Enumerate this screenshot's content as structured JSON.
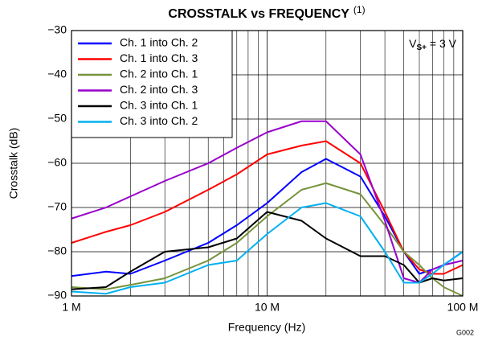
{
  "chart_data": {
    "type": "line",
    "title": "CROSSTALK vs FREQUENCY",
    "title_note": "(1)",
    "annotation": {
      "main": "V",
      "sub": "S+",
      "rest": " = 3 V"
    },
    "figure_id": "G002",
    "xlabel": "Frequency (Hz)",
    "ylabel": "Crosstalk (dB)",
    "xscale": "log",
    "xlim": [
      1000000,
      100000000
    ],
    "ylim": [
      -90,
      -30
    ],
    "xticks": [
      {
        "value": 1000000,
        "label": "1 M"
      },
      {
        "value": 10000000,
        "label": "10 M"
      },
      {
        "value": 100000000,
        "label": "100 M"
      }
    ],
    "xminorticks": [
      2000000,
      3000000,
      4000000,
      5000000,
      6000000,
      7000000,
      8000000,
      9000000,
      20000000,
      30000000,
      40000000,
      50000000,
      60000000,
      70000000,
      80000000,
      90000000
    ],
    "yticks": [
      {
        "value": -30,
        "label": "−30"
      },
      {
        "value": -40,
        "label": "−40"
      },
      {
        "value": -50,
        "label": "−50"
      },
      {
        "value": -60,
        "label": "−60"
      },
      {
        "value": -70,
        "label": "−70"
      },
      {
        "value": -80,
        "label": "−80"
      },
      {
        "value": -90,
        "label": "−90"
      }
    ],
    "grid": true,
    "legend": "upper left",
    "x": [
      1000000,
      1500000,
      2000000,
      3000000,
      5000000,
      7000000,
      10000000,
      15000000,
      20000000,
      30000000,
      40000000,
      50000000,
      60000000,
      70000000,
      80000000,
      100000000
    ],
    "series": [
      {
        "name": "Ch. 1 into Ch. 2",
        "color": "#0000ff",
        "values": [
          -85.5,
          -84.5,
          -85,
          -82,
          -78,
          -74,
          -69,
          -62,
          -59,
          -63,
          -72,
          -80,
          -85,
          -84,
          -83,
          -80
        ]
      },
      {
        "name": "Ch. 1 into Ch. 3",
        "color": "#ff0000",
        "values": [
          -78,
          -75.5,
          -74,
          -71,
          -66,
          -62.5,
          -58,
          -56,
          -55,
          -60,
          -71,
          -80,
          -84,
          -85,
          -85,
          -83
        ]
      },
      {
        "name": "Ch. 2 into Ch. 1",
        "color": "#77933c",
        "values": [
          -88,
          -88.5,
          -87.5,
          -86,
          -82,
          -78,
          -72,
          -66,
          -64.5,
          -67,
          -74,
          -80,
          -83,
          -86,
          -88,
          -90
        ]
      },
      {
        "name": "Ch. 2 into Ch. 3",
        "color": "#9900cc",
        "values": [
          -72.5,
          -70,
          -67.5,
          -64,
          -60,
          -56.5,
          -53,
          -50.5,
          -50.5,
          -58,
          -73,
          -86,
          -87,
          -84,
          -83,
          -82
        ]
      },
      {
        "name": "Ch. 3 into Ch. 1",
        "color": "#000000",
        "values": [
          -88.5,
          -88,
          -84.5,
          -80,
          -79,
          -77,
          -71,
          -73,
          -77,
          -81,
          -81,
          -83,
          -87,
          -86,
          -86.5,
          -86
        ]
      },
      {
        "name": "Ch. 3 into Ch. 2",
        "color": "#00b0f0",
        "values": [
          -89,
          -89.5,
          -88,
          -87,
          -83,
          -82,
          -76,
          -70,
          -69,
          -72,
          -80,
          -87,
          -87,
          -85,
          -83,
          -80
        ]
      }
    ]
  }
}
